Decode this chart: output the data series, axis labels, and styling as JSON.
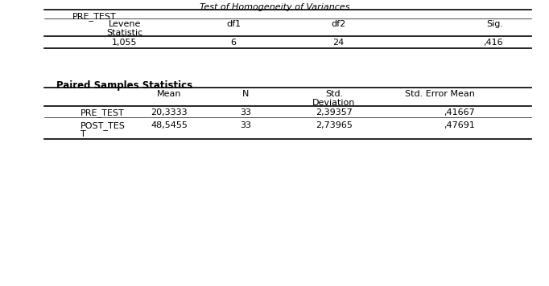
{
  "title1": "Test of Homogeneity of Variances",
  "table1_subheader": "PRE_TEST",
  "table1_col_headers_line1": [
    "Levene",
    "df1",
    "df2",
    "Sig."
  ],
  "table1_col_headers_line2": [
    "Statistic",
    "",
    "",
    ""
  ],
  "table1_data": [
    [
      "1,055",
      "6",
      "24",
      ",416"
    ]
  ],
  "table2_title": "Paired Samples Statistics",
  "table2_col_headers_line1": [
    "",
    "Mean",
    "N",
    "Std.",
    "Std. Error Mean"
  ],
  "table2_col_headers_line2": [
    "",
    "",
    "",
    "Deviation",
    ""
  ],
  "table2_data_row1": [
    "PRE_TEST",
    "20,3333",
    "33",
    "2,39357",
    ",41667"
  ],
  "table2_data_row2_line1": [
    "POST_TES",
    "48,5455",
    "33",
    "2,73965",
    ",47691"
  ],
  "table2_data_row2_line2": [
    "T",
    "",
    "",
    "",
    ""
  ],
  "bg_color": "#ffffff",
  "text_color": "#000000",
  "font_size": 8.0,
  "font_family": "DejaVu Sans"
}
